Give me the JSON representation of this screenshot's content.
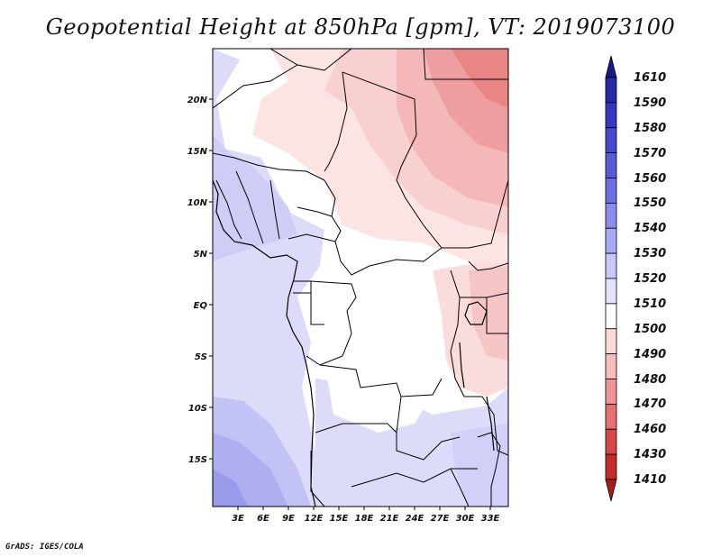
{
  "title": "Geopotential Height at 850hPa [gpm], VT: 2019073100",
  "credit": "GrADS: IGES/COLA",
  "map": {
    "lon_labels": [
      "3E",
      "6E",
      "9E",
      "12E",
      "15E",
      "18E",
      "21E",
      "24E",
      "27E",
      "30E",
      "33E"
    ],
    "lat_labels": [
      "20N",
      "15N",
      "10N",
      "5N",
      "EQ",
      "5S",
      "10S",
      "15S"
    ]
  },
  "colorbar": {
    "levels": [
      "1610",
      "1590",
      "1580",
      "1570",
      "1560",
      "1550",
      "1540",
      "1530",
      "1520",
      "1510",
      "1500",
      "1490",
      "1480",
      "1470",
      "1460",
      "1430",
      "1410"
    ],
    "colors": [
      "#1a1a86",
      "#2828a8",
      "#3636c0",
      "#4848cc",
      "#5a5ad8",
      "#6e6ee4",
      "#8c8cee",
      "#aaaaf4",
      "#c8c8f8",
      "#e2e2fb",
      "#ffffff",
      "#fbdada",
      "#f6bcbc",
      "#ee9696",
      "#e47070",
      "#d84848",
      "#c42a2a",
      "#aa1a1a"
    ]
  },
  "chart_data": {
    "type": "heatmap",
    "title": "Geopotential Height at 850hPa [gpm], VT: 2019073100",
    "variable": "Geopotential Height",
    "level": "850hPa",
    "units": "gpm",
    "valid_time": "2019073100",
    "x_ticks": [
      "3E",
      "6E",
      "9E",
      "12E",
      "15E",
      "18E",
      "21E",
      "24E",
      "27E",
      "30E",
      "33E"
    ],
    "y_ticks": [
      "20N",
      "15N",
      "10N",
      "5N",
      "EQ",
      "5S",
      "10S",
      "15S"
    ],
    "color_levels": [
      1410,
      1430,
      1460,
      1470,
      1480,
      1490,
      1500,
      1510,
      1520,
      1530,
      1540,
      1550,
      1560,
      1570,
      1580,
      1590,
      1610
    ]
  }
}
